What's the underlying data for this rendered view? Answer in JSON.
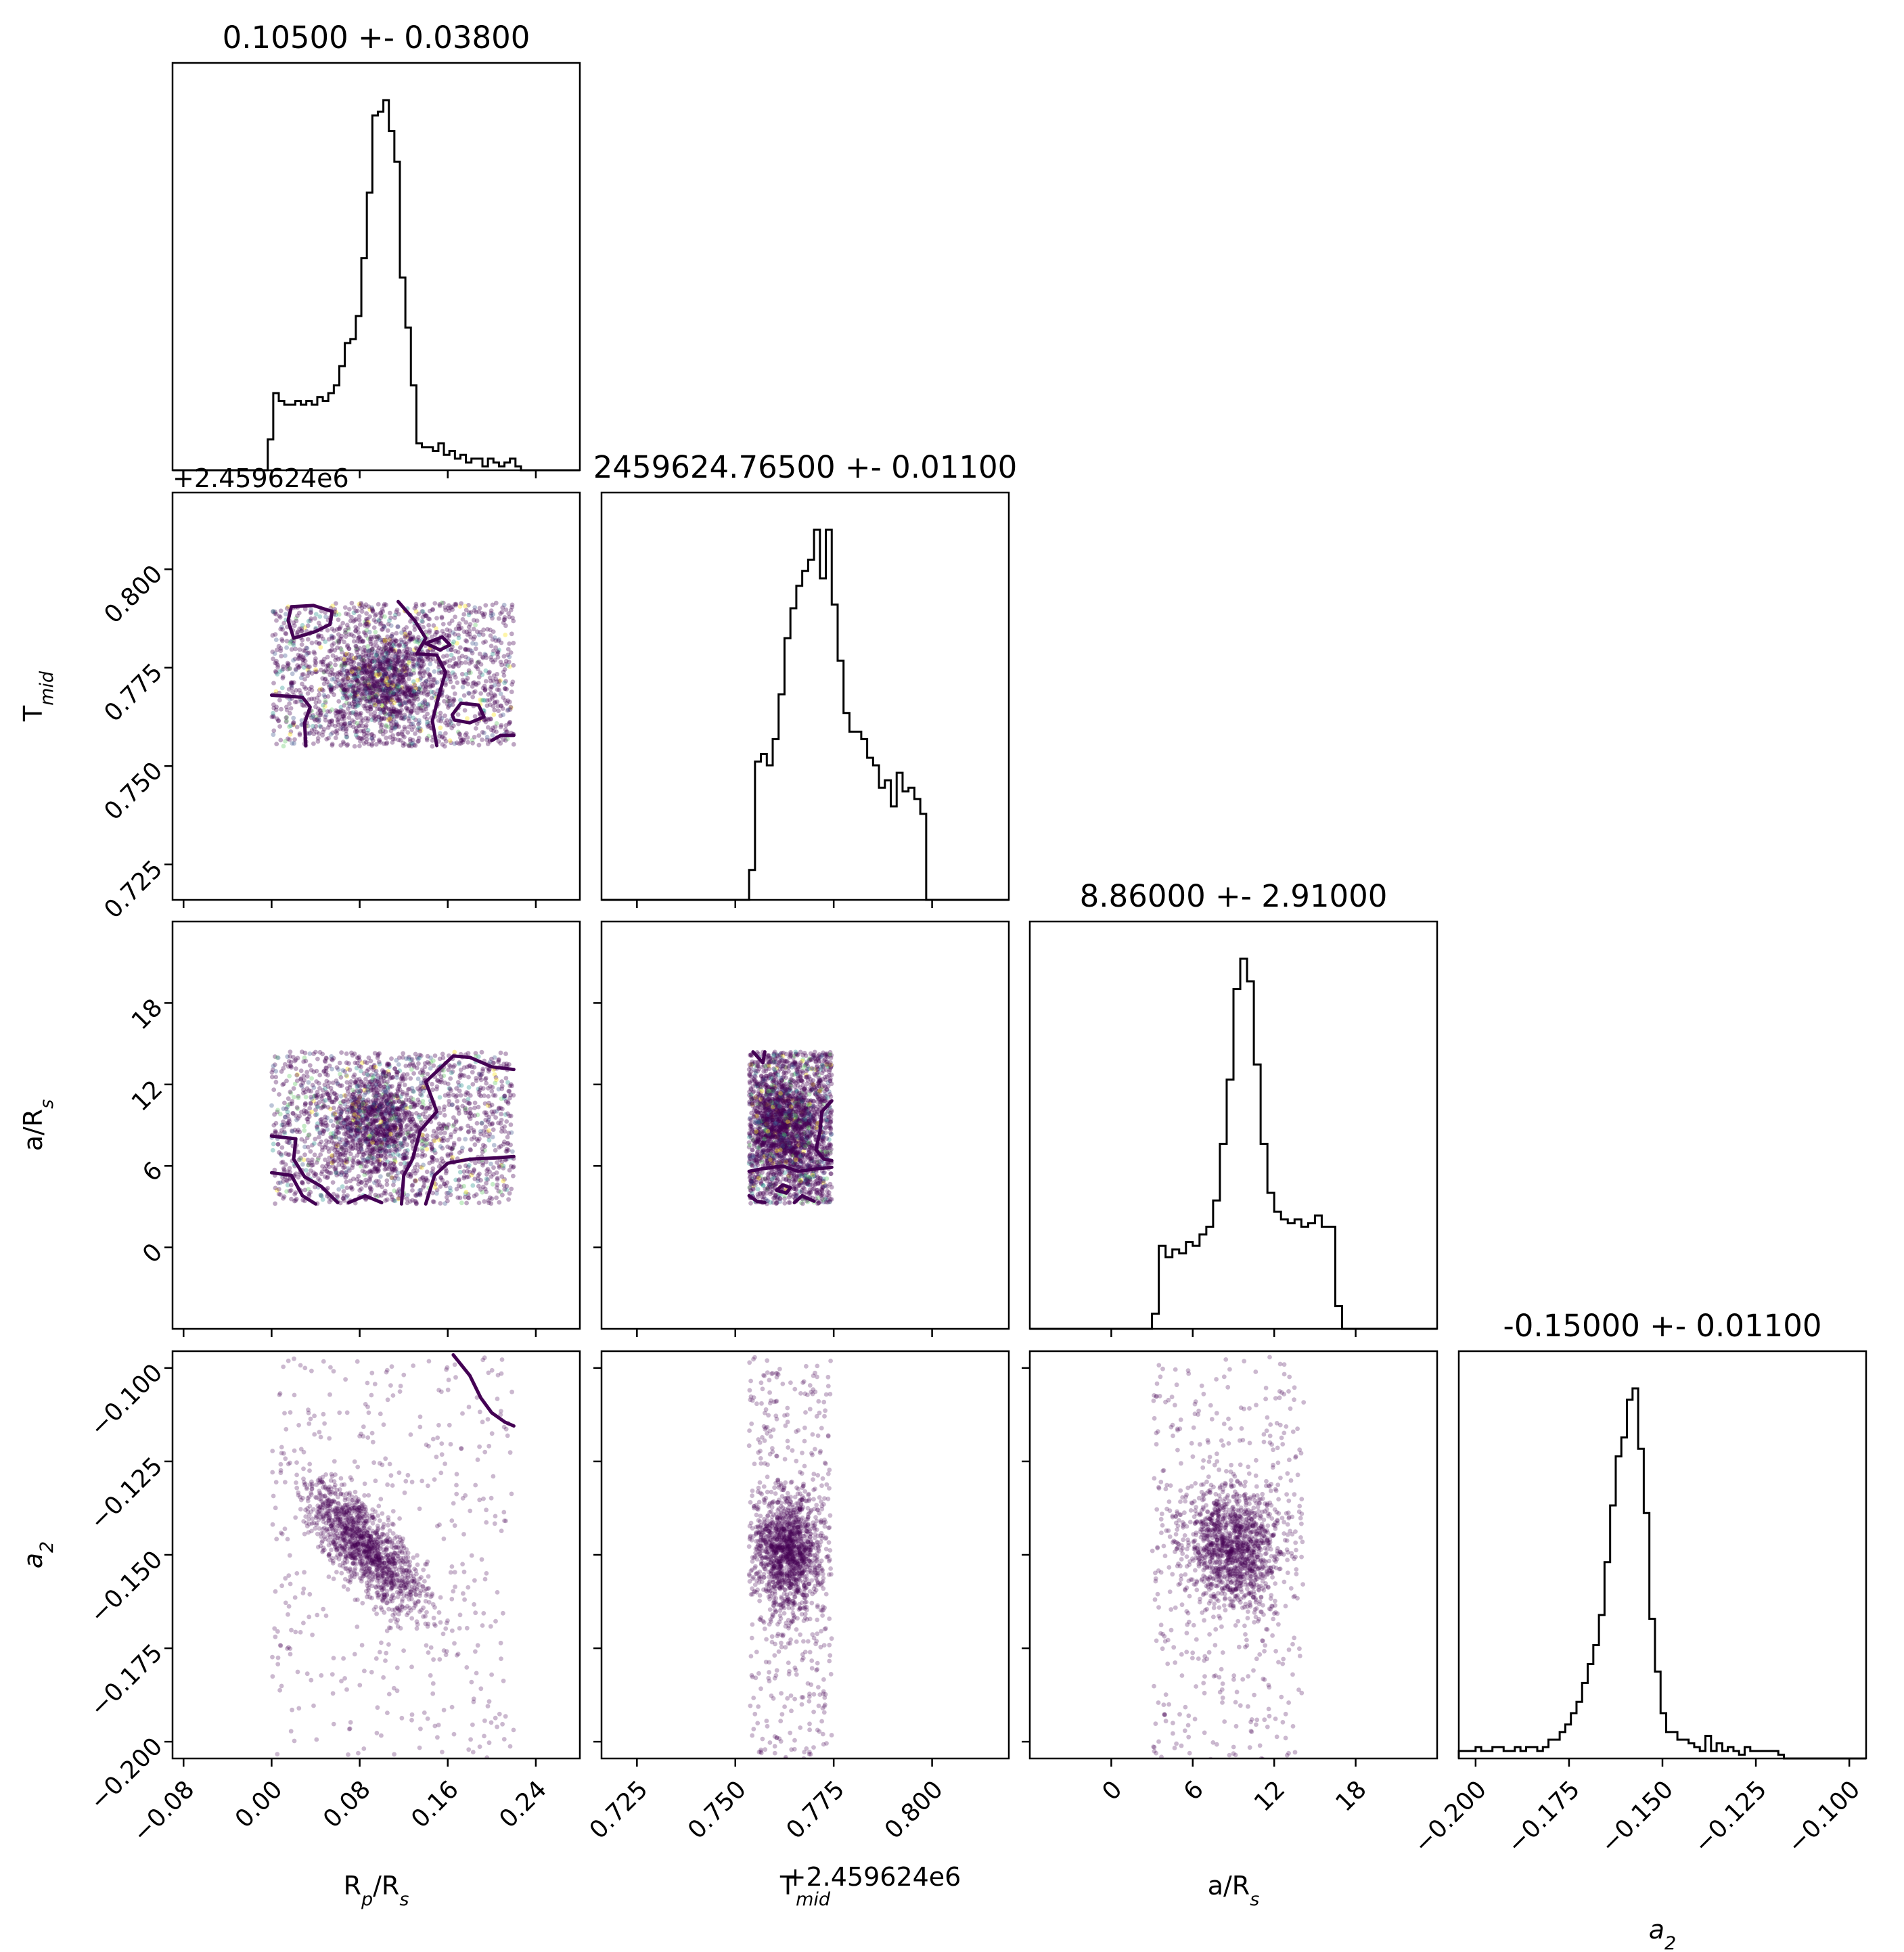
{
  "chart_data": {
    "type": "corner",
    "parameters": [
      {
        "id": "rp",
        "label": "R",
        "label_sub": "p",
        "label_mid": "/R",
        "label_sub2": "s",
        "italic": false,
        "range": [
          -0.09,
          0.28
        ],
        "ticks": [
          -0.08,
          0.0,
          0.08,
          0.16,
          0.24
        ],
        "tick_labels": [
          "−0.08",
          "0.00",
          "0.08",
          "0.16",
          "0.24"
        ]
      },
      {
        "id": "tmid",
        "label": "T",
        "label_sub": "mid",
        "label_mid": "",
        "label_sub2": "",
        "italic": false,
        "range": [
          0.716,
          0.8195
        ],
        "ticks": [
          0.725,
          0.75,
          0.775,
          0.8
        ],
        "tick_labels": [
          "0.725",
          "0.750",
          "0.775",
          "0.800"
        ],
        "offset_text": "+2.459624e6"
      },
      {
        "id": "ars",
        "label": "a/R",
        "label_sub": "s",
        "label_mid": "",
        "label_sub2": "",
        "italic": false,
        "range": [
          -6,
          24
        ],
        "ticks": [
          0,
          6,
          12,
          18
        ],
        "tick_labels": [
          "0",
          "6",
          "12",
          "18"
        ]
      },
      {
        "id": "a2",
        "label": "a",
        "label_sub": "2",
        "label_mid": "",
        "label_sub2": "",
        "italic": true,
        "range": [
          -0.2045,
          -0.0955
        ],
        "ticks": [
          -0.2,
          -0.175,
          -0.15,
          -0.125,
          -0.1
        ],
        "tick_labels": [
          "−0.200",
          "−0.175",
          "−0.150",
          "−0.125",
          "−0.100"
        ]
      }
    ],
    "titles": [
      "0.10500 +- 0.03800",
      "2459624.76500 +- 0.01100",
      "8.86000 +- 2.91000",
      "-0.15000 +- 0.01100"
    ],
    "histograms": [
      {
        "param": "rp",
        "bin_width": 0.005,
        "bin_start": -0.0035,
        "counts": [
          0.08,
          0.2,
          0.18,
          0.17,
          0.17,
          0.18,
          0.17,
          0.18,
          0.17,
          0.19,
          0.18,
          0.2,
          0.22,
          0.27,
          0.33,
          0.34,
          0.4,
          0.55,
          0.72,
          0.92,
          0.93,
          0.96,
          0.88,
          0.8,
          0.5,
          0.37,
          0.22,
          0.07,
          0.06,
          0.06,
          0.05,
          0.07,
          0.04,
          0.05,
          0.03,
          0.04,
          0.02,
          0.03,
          0.03,
          0.01,
          0.03,
          0.02,
          0.01,
          0.02,
          0.03,
          0.01
        ],
        "y_max": 0.96
      },
      {
        "param": "tmid",
        "bin_width": 0.0015,
        "bin_start": 0.7535,
        "counts": [
          0.08,
          0.37,
          0.39,
          0.36,
          0.43,
          0.55,
          0.7,
          0.78,
          0.84,
          0.88,
          0.91,
          0.99,
          0.86,
          0.99,
          0.79,
          0.64,
          0.5,
          0.45,
          0.45,
          0.43,
          0.38,
          0.36,
          0.3,
          0.32,
          0.25,
          0.34,
          0.29,
          0.3,
          0.27,
          0.23
        ],
        "y_max": 0.99
      },
      {
        "param": "ars",
        "bin_width": 0.5,
        "bin_start": 3.0,
        "counts": [
          0.04,
          0.22,
          0.19,
          0.21,
          0.2,
          0.23,
          0.22,
          0.25,
          0.27,
          0.34,
          0.49,
          0.66,
          0.9,
          0.98,
          0.92,
          0.7,
          0.49,
          0.36,
          0.31,
          0.29,
          0.28,
          0.29,
          0.27,
          0.28,
          0.3,
          0.27,
          0.27,
          0.06
        ],
        "y_max": 0.98
      },
      {
        "param": "a2",
        "bin_width": 0.0015,
        "bin_start": -0.2045,
        "counts": [
          0.02,
          0.02,
          0.02,
          0.03,
          0.02,
          0.02,
          0.03,
          0.03,
          0.02,
          0.02,
          0.03,
          0.02,
          0.03,
          0.03,
          0.02,
          0.03,
          0.05,
          0.05,
          0.07,
          0.09,
          0.12,
          0.15,
          0.2,
          0.25,
          0.3,
          0.38,
          0.52,
          0.67,
          0.8,
          0.85,
          0.95,
          0.98,
          0.82,
          0.65,
          0.37,
          0.23,
          0.12,
          0.07,
          0.07,
          0.05,
          0.05,
          0.04,
          0.03,
          0.02,
          0.06,
          0.02,
          0.04,
          0.02,
          0.03,
          0.02,
          0.01,
          0.03,
          0.02,
          0.02,
          0.02,
          0.02,
          0.02,
          0.01
        ],
        "y_max": 0.98
      }
    ],
    "scatter_panels": [
      {
        "x": "rp",
        "y": "tmid",
        "uniform": {
          "x": [
            0.0,
            0.22
          ],
          "y": [
            0.755,
            0.7915
          ],
          "n": 1500
        },
        "clusters": [
          {
            "cx": 0.1,
            "cy": 0.772,
            "sx": 0.022,
            "sy": 0.0065,
            "n": 1000,
            "rho": 0.0
          }
        ],
        "color_mode": "viridis-mix",
        "contours": [
          [
            [
              0.02,
              0.7825
            ],
            [
              0.015,
              0.787
            ],
            [
              0.018,
              0.7905
            ],
            [
              0.038,
              0.7908
            ],
            [
              0.055,
              0.7893
            ],
            [
              0.053,
              0.786
            ],
            [
              0.04,
              0.7842
            ],
            [
              0.02,
              0.7825
            ]
          ],
          [
            [
              0.0,
              0.768
            ],
            [
              0.028,
              0.7675
            ],
            [
              0.035,
              0.765
            ],
            [
              0.03,
              0.761
            ],
            [
              0.031,
              0.7552
            ]
          ],
          [
            [
              0.115,
              0.7918
            ],
            [
              0.13,
              0.787
            ],
            [
              0.14,
              0.7825
            ],
            [
              0.132,
              0.7785
            ],
            [
              0.15,
              0.7782
            ],
            [
              0.158,
              0.7738
            ],
            [
              0.152,
              0.768
            ],
            [
              0.146,
              0.7615
            ],
            [
              0.15,
              0.7552
            ]
          ],
          [
            [
              0.14,
              0.7812
            ],
            [
              0.155,
              0.7828
            ],
            [
              0.162,
              0.7808
            ],
            [
              0.153,
              0.7795
            ],
            [
              0.14,
              0.7812
            ]
          ],
          [
            [
              0.164,
              0.763
            ],
            [
              0.172,
              0.766
            ],
            [
              0.188,
              0.7655
            ],
            [
              0.193,
              0.7625
            ],
            [
              0.18,
              0.761
            ],
            [
              0.166,
              0.7617
            ],
            [
              0.164,
              0.763
            ]
          ],
          [
            [
              0.2,
              0.7565
            ],
            [
              0.208,
              0.7578
            ],
            [
              0.22,
              0.7578
            ]
          ]
        ]
      },
      {
        "x": "rp",
        "y": "ars",
        "uniform": {
          "x": [
            0.0,
            0.22
          ],
          "y": [
            3.2,
            14.4
          ],
          "n": 1500
        },
        "clusters": [
          {
            "cx": 0.095,
            "cy": 9.0,
            "sx": 0.022,
            "sy": 2.0,
            "n": 1000,
            "rho": 0.0
          }
        ],
        "color_mode": "viridis-mix",
        "contours": [
          [
            [
              0.0,
              8.2
            ],
            [
              0.022,
              8.0
            ],
            [
              0.02,
              6.5
            ],
            [
              0.03,
              5.2
            ],
            [
              0.045,
              4.5
            ],
            [
              0.06,
              3.3
            ]
          ],
          [
            [
              0.0,
              5.5
            ],
            [
              0.018,
              5.3
            ],
            [
              0.028,
              3.8
            ],
            [
              0.04,
              3.2
            ]
          ],
          [
            [
              0.07,
              3.3
            ],
            [
              0.085,
              3.8
            ],
            [
              0.1,
              3.3
            ]
          ],
          [
            [
              0.14,
              3.2
            ],
            [
              0.148,
              5.3
            ],
            [
              0.16,
              6.2
            ],
            [
              0.18,
              6.5
            ],
            [
              0.205,
              6.6
            ],
            [
              0.22,
              6.7
            ]
          ],
          [
            [
              0.22,
              13.1
            ],
            [
              0.2,
              13.3
            ],
            [
              0.18,
              14.0
            ],
            [
              0.165,
              14.1
            ],
            [
              0.14,
              12.2
            ],
            [
              0.15,
              10.0
            ],
            [
              0.135,
              8.6
            ],
            [
              0.128,
              6.5
            ],
            [
              0.12,
              5.3
            ],
            [
              0.118,
              3.2
            ]
          ]
        ]
      },
      {
        "x": "tmid",
        "y": "ars",
        "uniform": {
          "x": [
            0.7535,
            0.7745
          ],
          "y": [
            3.2,
            14.4
          ],
          "n": 1500
        },
        "clusters": [
          {
            "cx": 0.7625,
            "cy": 9.0,
            "sx": 0.0045,
            "sy": 1.7,
            "n": 1100,
            "rho": 0.0
          }
        ],
        "color_mode": "viridis-mix",
        "contours": [
          [
            [
              0.7535,
              5.6
            ],
            [
              0.757,
              5.8
            ],
            [
              0.762,
              6.0
            ],
            [
              0.766,
              5.6
            ],
            [
              0.771,
              5.8
            ],
            [
              0.7745,
              5.9
            ]
          ],
          [
            [
              0.7535,
              3.8
            ],
            [
              0.7555,
              3.4
            ],
            [
              0.7575,
              3.3
            ]
          ],
          [
            [
              0.7605,
              4.2
            ],
            [
              0.762,
              4.6
            ],
            [
              0.764,
              4.4
            ],
            [
              0.763,
              4.0
            ],
            [
              0.7605,
              4.2
            ]
          ],
          [
            [
              0.7745,
              10.8
            ],
            [
              0.772,
              10.0
            ],
            [
              0.7715,
              8.5
            ],
            [
              0.7705,
              7.2
            ],
            [
              0.7725,
              6.5
            ],
            [
              0.7745,
              6.4
            ]
          ],
          [
            [
              0.765,
              3.3
            ],
            [
              0.767,
              3.8
            ],
            [
              0.77,
              3.4
            ]
          ],
          [
            [
              0.7545,
              14.4
            ],
            [
              0.757,
              13.6
            ],
            [
              0.7575,
              14.4
            ]
          ]
        ]
      },
      {
        "x": "rp",
        "y": "a2",
        "uniform": {
          "x": [
            0.0,
            0.22
          ],
          "y": [
            -0.205,
            -0.097
          ],
          "n": 420
        },
        "clusters": [
          {
            "cx": 0.085,
            "cy": -0.148,
            "sx": 0.028,
            "sy": 0.009,
            "n": 1300,
            "rho": -0.8
          }
        ],
        "color_mode": "purple",
        "contours": [
          [
            [
              0.165,
              -0.0965
            ],
            [
              0.18,
              -0.102
            ],
            [
              0.19,
              -0.108
            ],
            [
              0.2,
              -0.112
            ],
            [
              0.212,
              -0.1145
            ],
            [
              0.22,
              -0.1155
            ]
          ]
        ]
      },
      {
        "x": "tmid",
        "y": "a2",
        "uniform": {
          "x": [
            0.7535,
            0.7745
          ],
          "y": [
            -0.205,
            -0.097
          ],
          "n": 420
        },
        "clusters": [
          {
            "cx": 0.7635,
            "cy": -0.149,
            "sx": 0.0045,
            "sy": 0.008,
            "n": 1300,
            "rho": 0.0
          }
        ],
        "color_mode": "purple",
        "contours": []
      },
      {
        "x": "ars",
        "y": "a2",
        "uniform": {
          "x": [
            3.0,
            14.3
          ],
          "y": [
            -0.205,
            -0.097
          ],
          "n": 420
        },
        "clusters": [
          {
            "cx": 9.0,
            "cy": -0.148,
            "sx": 1.8,
            "sy": 0.008,
            "n": 1300,
            "rho": 0.0
          }
        ],
        "color_mode": "purple",
        "contours": []
      }
    ],
    "grid": false,
    "colors": {
      "dark_purple": "#440154",
      "line": "#000000",
      "viridis": [
        "#440154",
        "#3b528b",
        "#21918c",
        "#5ec962",
        "#fde725"
      ]
    }
  }
}
